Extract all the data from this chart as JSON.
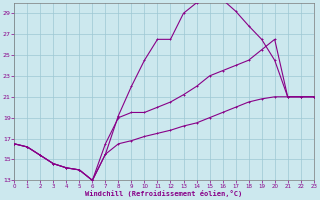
{
  "xlabel": "Windchill (Refroidissement éolien,°C)",
  "bg_color": "#cce8ee",
  "grid_color": "#9ec8d4",
  "line_color": "#880088",
  "ylim": [
    13,
    30
  ],
  "xlim": [
    0,
    23
  ],
  "yticks": [
    13,
    15,
    17,
    19,
    21,
    23,
    25,
    27,
    29
  ],
  "xticks": [
    0,
    1,
    2,
    3,
    4,
    5,
    6,
    7,
    8,
    9,
    10,
    11,
    12,
    13,
    14,
    15,
    16,
    17,
    18,
    19,
    20,
    21,
    22,
    23
  ],
  "line1_y": [
    16.5,
    16.2,
    15.4,
    14.6,
    14.2,
    14.0,
    13.0,
    15.5,
    19.2,
    22.0,
    24.5,
    26.5,
    26.5,
    29.0,
    30.0,
    30.3,
    30.3,
    29.2,
    27.8,
    26.5,
    24.5,
    21.0,
    21.0,
    21.0
  ],
  "line2_y": [
    16.5,
    16.2,
    15.4,
    14.6,
    14.2,
    14.0,
    13.0,
    16.5,
    19.0,
    19.5,
    19.5,
    20.0,
    20.5,
    21.2,
    22.0,
    23.0,
    23.5,
    24.0,
    24.5,
    25.5,
    26.5,
    21.0,
    21.0,
    21.0
  ],
  "line3_y": [
    16.5,
    16.2,
    15.4,
    14.6,
    14.2,
    14.0,
    13.0,
    15.5,
    16.5,
    16.8,
    17.2,
    17.5,
    17.8,
    18.2,
    18.5,
    19.0,
    19.5,
    20.0,
    20.5,
    20.8,
    21.0,
    21.0,
    21.0,
    21.0
  ]
}
